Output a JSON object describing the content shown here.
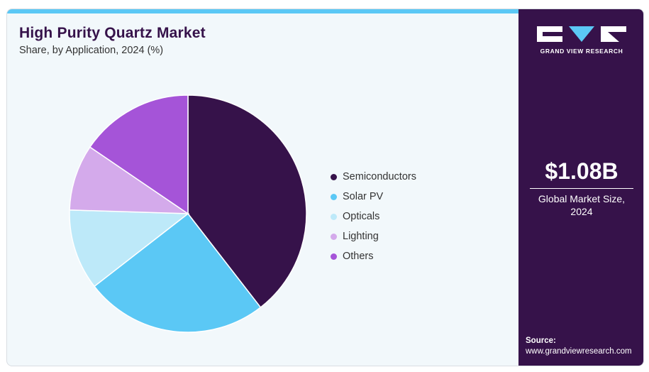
{
  "header": {
    "title": "High Purity Quartz Market",
    "subtitle": "Share, by Application, 2024 (%)"
  },
  "chart_data": {
    "type": "pie",
    "categories": [
      "Semiconductors",
      "Solar PV",
      "Opticals",
      "Lighting",
      "Others"
    ],
    "values": [
      39.5,
      25.0,
      11.0,
      9.0,
      15.5
    ],
    "colors": [
      "#36124a",
      "#5bc8f5",
      "#bde9f9",
      "#d4aaeb",
      "#a554d8"
    ],
    "title": "High Purity Quartz Market",
    "legend_position": "right"
  },
  "sidebar": {
    "logo_text": "GRAND VIEW RESEARCH",
    "market_size": "$1.08B",
    "market_caption_line1": "Global Market Size,",
    "market_caption_line2": "2024",
    "source_label": "Source:",
    "source_url": "www.grandviewresearch.com"
  }
}
